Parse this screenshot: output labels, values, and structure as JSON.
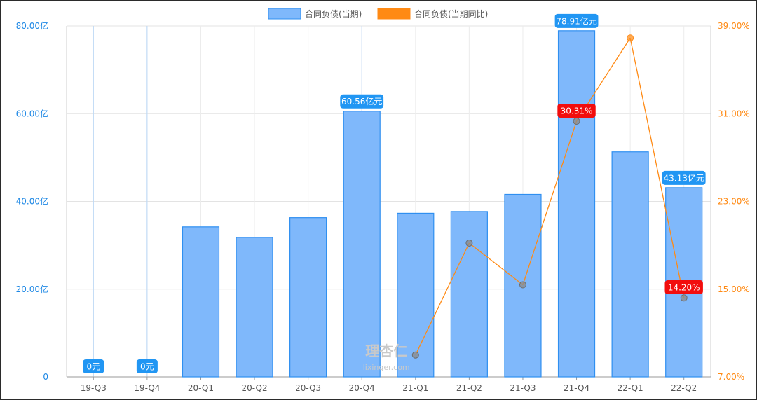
{
  "colors": {
    "bar_fill": "#7fb8fb",
    "bar_stroke": "#2f8ff0",
    "line": "#ff8a14",
    "left_axis": "#1e88e5",
    "right_axis": "#ff8a14",
    "label_blue": "#2196f3",
    "label_red": "#f20d0d",
    "grid": "#e3e3e3",
    "marker_gray": "#8a8a8a"
  },
  "watermark": {
    "main": "理杏仁",
    "sub": "lixinger.com"
  },
  "chart_data": {
    "type": "bar",
    "categories": [
      "19-Q3",
      "19-Q4",
      "20-Q1",
      "20-Q2",
      "20-Q3",
      "20-Q4",
      "21-Q1",
      "21-Q2",
      "21-Q3",
      "21-Q4",
      "22-Q1",
      "22-Q2"
    ],
    "series": [
      {
        "name": "合同负债(当期)",
        "type": "bar",
        "axis": "left",
        "values": [
          0,
          0,
          34.2,
          31.8,
          36.3,
          60.56,
          37.3,
          37.7,
          41.6,
          78.91,
          51.3,
          43.13
        ],
        "unit": "亿"
      },
      {
        "name": "合同负债(当期同比)",
        "type": "line",
        "axis": "right",
        "values": [
          null,
          null,
          null,
          null,
          null,
          null,
          9.0,
          19.2,
          15.4,
          30.31,
          37.9,
          14.2
        ],
        "unit": "%"
      }
    ],
    "left_axis": {
      "ylim": [
        0,
        80
      ],
      "ticks": [
        0,
        20,
        40,
        60,
        80
      ],
      "tick_labels": [
        "0",
        "20.00亿",
        "40.00亿",
        "60.00亿",
        "80.00亿"
      ]
    },
    "right_axis": {
      "ylim": [
        7,
        39
      ],
      "ticks": [
        7,
        15,
        23,
        31,
        39
      ],
      "tick_labels": [
        "7.00%",
        "15.00%",
        "23.00%",
        "31.00%",
        "39.00%"
      ]
    },
    "data_labels": [
      {
        "category": "19-Q3",
        "text": "0元",
        "style": "blue"
      },
      {
        "category": "19-Q4",
        "text": "0元",
        "style": "blue"
      },
      {
        "category": "20-Q4",
        "text": "60.56亿元",
        "style": "blue"
      },
      {
        "category": "21-Q4",
        "text": "78.91亿元",
        "style": "blue"
      },
      {
        "category": "22-Q2",
        "text": "43.13亿元",
        "style": "blue"
      },
      {
        "category": "21-Q4",
        "text": "30.31%",
        "style": "red"
      },
      {
        "category": "22-Q2",
        "text": "14.20%",
        "style": "red"
      }
    ],
    "legend": {
      "position": "top-center",
      "entries": [
        "合同负债(当期)",
        "合同负债(当期同比)"
      ]
    },
    "grid": true
  }
}
